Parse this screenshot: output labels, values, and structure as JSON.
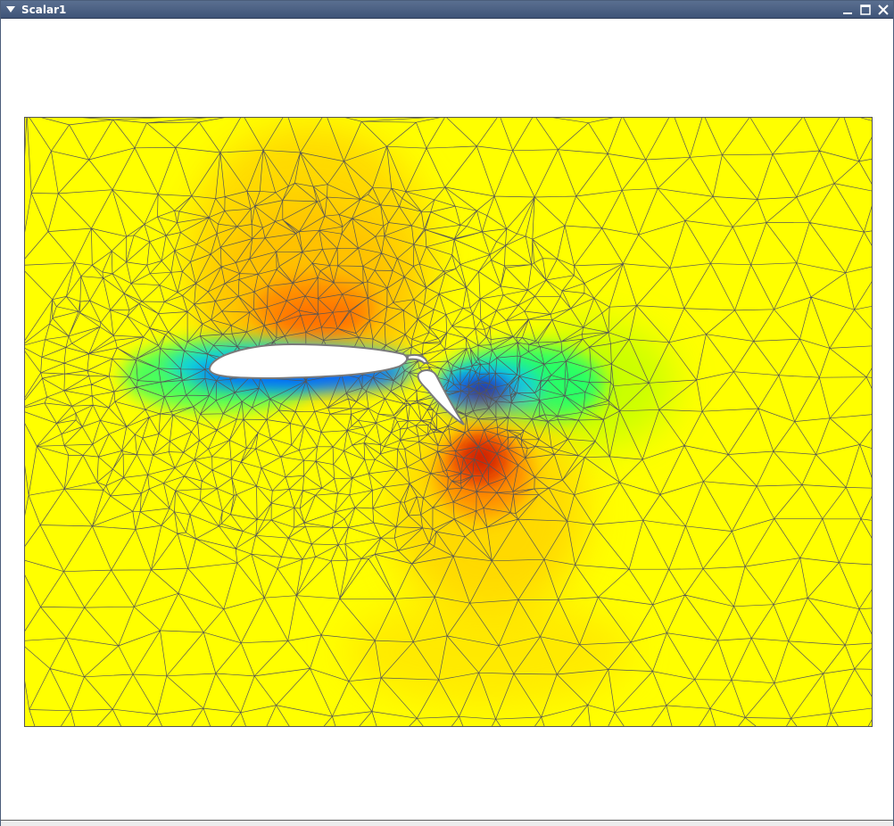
{
  "window": {
    "title": "Scalar1"
  },
  "icons": {
    "menu": "triangle-down-icon",
    "minimize": "minimize-icon",
    "maximize": "maximize-icon",
    "close": "close-icon"
  },
  "visualization": {
    "field": "scalar",
    "background_color": "#ffff00",
    "mesh_line_color": "#555555",
    "airfoil_fill_color": "#ffffff",
    "colormap": [
      "#0000a0",
      "#0050ff",
      "#00c8ff",
      "#00ff80",
      "#b4ff00",
      "#ffff00",
      "#ffc800",
      "#ff8c00",
      "#e63c00",
      "#c81e00"
    ]
  }
}
